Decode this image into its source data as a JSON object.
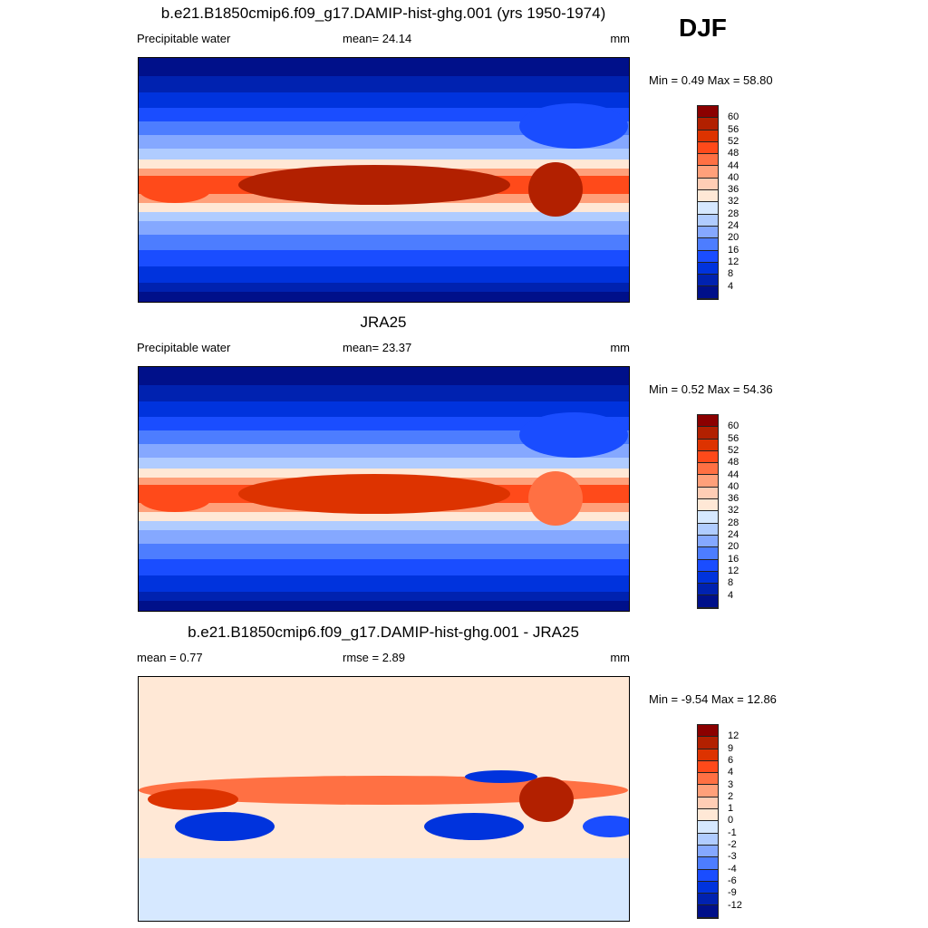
{
  "season": "DJF",
  "units": "mm",
  "colors": [
    "#00108a",
    "#0022b0",
    "#0033dd",
    "#1a4dff",
    "#4d7dff",
    "#85a8ff",
    "#b0ccff",
    "#d6e8ff",
    "#ffe8d6",
    "#ffcdb5",
    "#ffa07a",
    "#ff7043",
    "#ff4a1a",
    "#dd3300",
    "#b22000",
    "#8b0000"
  ],
  "panels": [
    {
      "title": "b.e21.B1850cmip6.f09_g17.DAMIP-hist-ghg.001 (yrs 1950-1974)",
      "left": "Precipitable water",
      "center": "mean=  24.14",
      "right": "mm",
      "minmax": "Min =   0.49 Max =  58.80",
      "levels": [
        "4",
        "8",
        "12",
        "16",
        "20",
        "24",
        "28",
        "32",
        "36",
        "40",
        "44",
        "48",
        "52",
        "56",
        "60"
      ]
    },
    {
      "title": "JRA25",
      "left": "Precipitable water",
      "center": "mean=  23.37",
      "right": "mm",
      "minmax": "Min =   0.52 Max =  54.36",
      "levels": [
        "4",
        "8",
        "12",
        "16",
        "20",
        "24",
        "28",
        "32",
        "36",
        "40",
        "44",
        "48",
        "52",
        "56",
        "60"
      ]
    },
    {
      "title": "b.e21.B1850cmip6.f09_g17.DAMIP-hist-ghg.001 - JRA25",
      "left": "mean =   0.77",
      "center": "rmse =   2.89",
      "right": "mm",
      "minmax": "Min =  -9.54 Max =  12.86",
      "levels": [
        "-12",
        "-9",
        "-6",
        "-4",
        "-3",
        "-2",
        "-1",
        "0",
        "1",
        "2",
        "3",
        "4",
        "6",
        "9",
        "12"
      ]
    }
  ]
}
